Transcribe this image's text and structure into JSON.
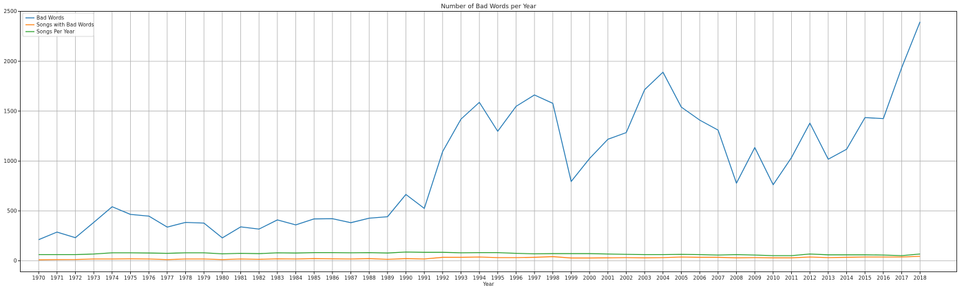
{
  "chart_data": {
    "type": "line",
    "title": "Number of Bad Words per Year",
    "xlabel": "Year",
    "ylabel": "",
    "x": [
      1970,
      1971,
      1972,
      1973,
      1974,
      1975,
      1976,
      1977,
      1978,
      1979,
      1980,
      1981,
      1982,
      1983,
      1984,
      1985,
      1986,
      1987,
      1988,
      1989,
      1990,
      1991,
      1992,
      1993,
      1994,
      1995,
      1996,
      1997,
      1998,
      1999,
      2000,
      2001,
      2002,
      2003,
      2004,
      2005,
      2006,
      2007,
      2008,
      2009,
      2010,
      2011,
      2012,
      2013,
      2014,
      2015,
      2016,
      2017,
      2018
    ],
    "xlim": [
      1969,
      2020
    ],
    "ylim": [
      -110,
      2500
    ],
    "yticks": [
      0,
      500,
      1000,
      1500,
      2000,
      2500
    ],
    "grid": true,
    "legend": "top-left",
    "series": [
      {
        "name": "Bad Words",
        "color": "#1f77b4",
        "values": [
          212,
          288,
          232,
          385,
          542,
          465,
          448,
          338,
          385,
          378,
          230,
          340,
          318,
          410,
          360,
          420,
          422,
          382,
          427,
          442,
          665,
          525,
          1095,
          1420,
          1588,
          1298,
          1548,
          1662,
          1578,
          795,
          1025,
          1218,
          1285,
          1715,
          1890,
          1540,
          1410,
          1310,
          778,
          1135,
          762,
          1035,
          1380,
          1018,
          1118,
          1435,
          1425,
          1935,
          2395
        ]
      },
      {
        "name": "Songs with Bad Words",
        "color": "#ff7f0e",
        "values": [
          10,
          12,
          13,
          18,
          18,
          20,
          18,
          12,
          18,
          18,
          12,
          18,
          15,
          20,
          18,
          22,
          20,
          18,
          22,
          15,
          22,
          18,
          35,
          35,
          38,
          32,
          32,
          35,
          42,
          28,
          28,
          30,
          32,
          30,
          32,
          38,
          35,
          35,
          30,
          32,
          30,
          30,
          38,
          32,
          35,
          38,
          38,
          38,
          45
        ]
      },
      {
        "name": "Songs Per Year",
        "color": "#2ca02c",
        "values": [
          62,
          62,
          62,
          68,
          80,
          80,
          78,
          75,
          80,
          80,
          70,
          75,
          72,
          80,
          78,
          82,
          82,
          80,
          82,
          78,
          88,
          85,
          85,
          80,
          82,
          82,
          75,
          70,
          72,
          72,
          72,
          68,
          65,
          62,
          62,
          65,
          62,
          58,
          62,
          58,
          52,
          52,
          68,
          60,
          60,
          60,
          58,
          52,
          68
        ]
      }
    ]
  }
}
